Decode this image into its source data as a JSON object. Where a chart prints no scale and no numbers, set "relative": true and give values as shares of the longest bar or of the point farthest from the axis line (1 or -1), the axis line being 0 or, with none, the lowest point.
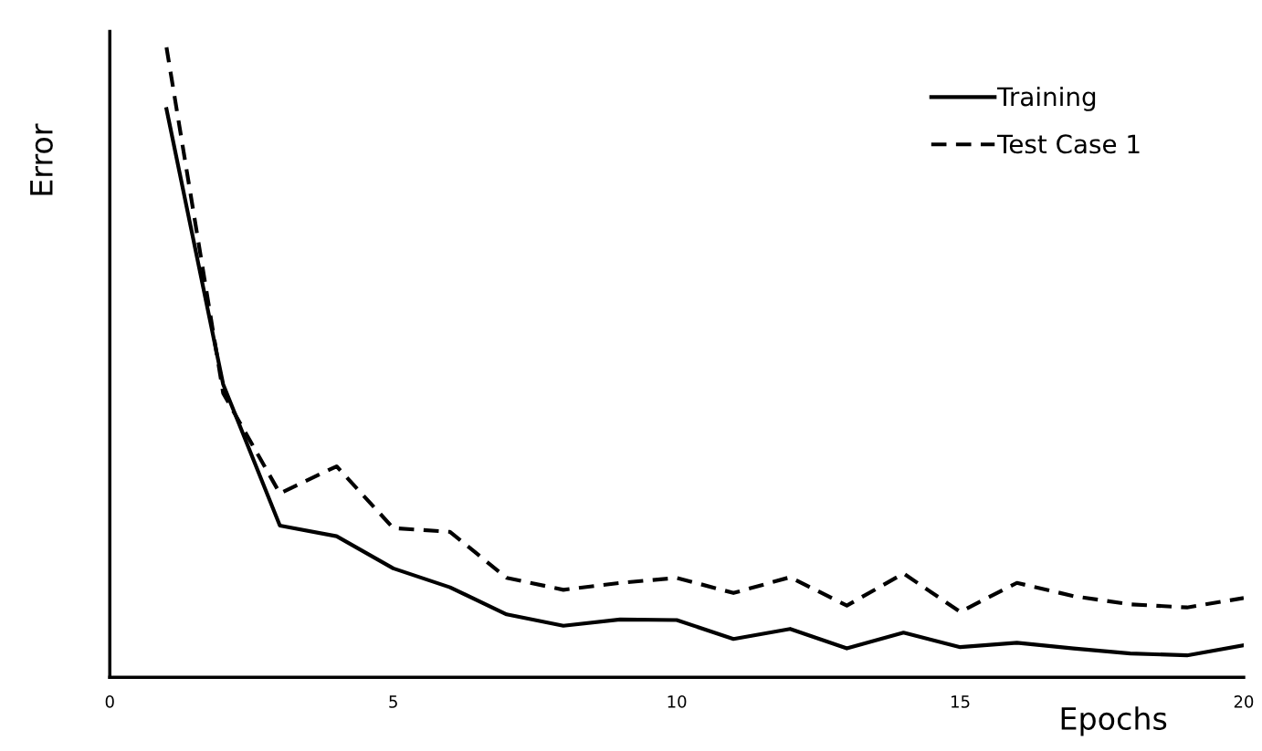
{
  "chart_data": {
    "type": "line",
    "relative": true,
    "xlabel": "Epochs",
    "ylabel": "Error",
    "x": [
      1,
      2,
      3,
      4,
      5,
      6,
      7,
      8,
      9,
      10,
      11,
      12,
      13,
      14,
      15,
      16,
      17,
      18,
      19,
      20
    ],
    "xlim": [
      0,
      20
    ],
    "xticks": [
      0,
      5,
      10,
      15,
      20
    ],
    "grid": false,
    "legend": "top right",
    "series": [
      {
        "name": "Training",
        "color": "#000000",
        "line_style": "solid",
        "values": [
          0.902,
          0.465,
          0.241,
          0.224,
          0.173,
          0.143,
          0.1,
          0.082,
          0.092,
          0.091,
          0.061,
          0.077,
          0.046,
          0.071,
          0.048,
          0.055,
          0.046,
          0.038,
          0.035,
          0.051
        ]
      },
      {
        "name": "Test Case 1",
        "color": "#000000",
        "line_style": "dashed",
        "values": [
          1.0,
          0.451,
          0.292,
          0.335,
          0.237,
          0.231,
          0.158,
          0.139,
          0.15,
          0.158,
          0.134,
          0.159,
          0.114,
          0.165,
          0.104,
          0.15,
          0.129,
          0.116,
          0.111,
          0.126
        ]
      }
    ]
  }
}
